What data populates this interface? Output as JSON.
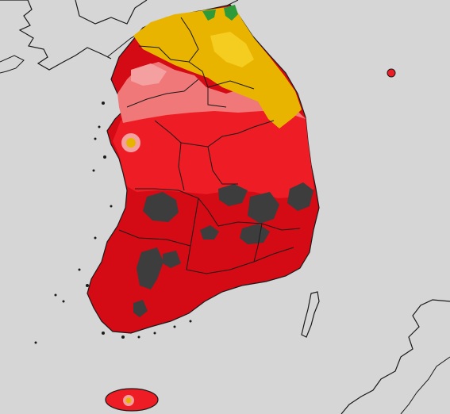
{
  "map": {
    "background_color": "#d6d6d6",
    "coast_color": "#1a1a1a",
    "regions": [
      {
        "name": "northern-band",
        "color": "#e8b400"
      },
      {
        "name": "transition-pink",
        "color": "#f07878"
      },
      {
        "name": "central-red",
        "color": "#ee1c24"
      },
      {
        "name": "southern-red",
        "color": "#d40a14"
      },
      {
        "name": "extreme-gray-spots",
        "color": "#3d3d3d"
      },
      {
        "name": "green-spot",
        "color": "#2f9a3a"
      }
    ],
    "islands": [
      "ulleungdo",
      "jeju-island"
    ],
    "legend": [],
    "labels": []
  }
}
